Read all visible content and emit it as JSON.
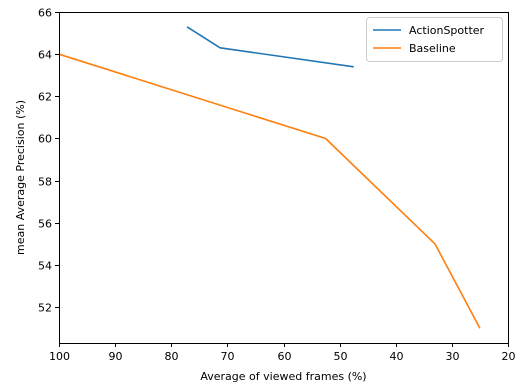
{
  "chart_data": {
    "type": "line",
    "xlabel": "Average of viewed frames (%)",
    "ylabel": "mean Average Precision (%)",
    "xlim": [
      100,
      20
    ],
    "ylim": [
      50.3,
      66
    ],
    "x_reversed": true,
    "xticks": [
      100,
      90,
      80,
      70,
      60,
      50,
      40,
      30,
      20
    ],
    "yticks": [
      52,
      54,
      56,
      58,
      60,
      62,
      64,
      66
    ],
    "grid": false,
    "legend_position": "top-right",
    "series": [
      {
        "name": "ActionSpotter",
        "color": "#1f77b4",
        "points": [
          [
            77.2,
            65.3
          ],
          [
            71.3,
            64.3
          ],
          [
            47.5,
            63.4
          ]
        ]
      },
      {
        "name": "Baseline",
        "color": "#ff7f0e",
        "points": [
          [
            100,
            64.0
          ],
          [
            52.5,
            60.0
          ],
          [
            33.0,
            55.0
          ],
          [
            25.0,
            51.0
          ]
        ]
      }
    ]
  }
}
